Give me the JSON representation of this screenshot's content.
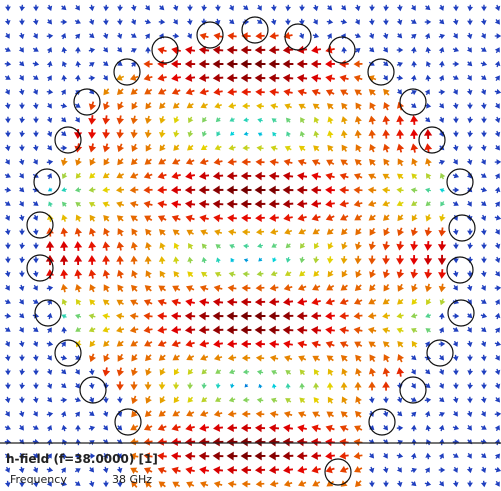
{
  "legend": {
    "title": "h-field (f=38.0000) [1]",
    "parameter": "Frequency",
    "value": "38 GHz"
  }
}
